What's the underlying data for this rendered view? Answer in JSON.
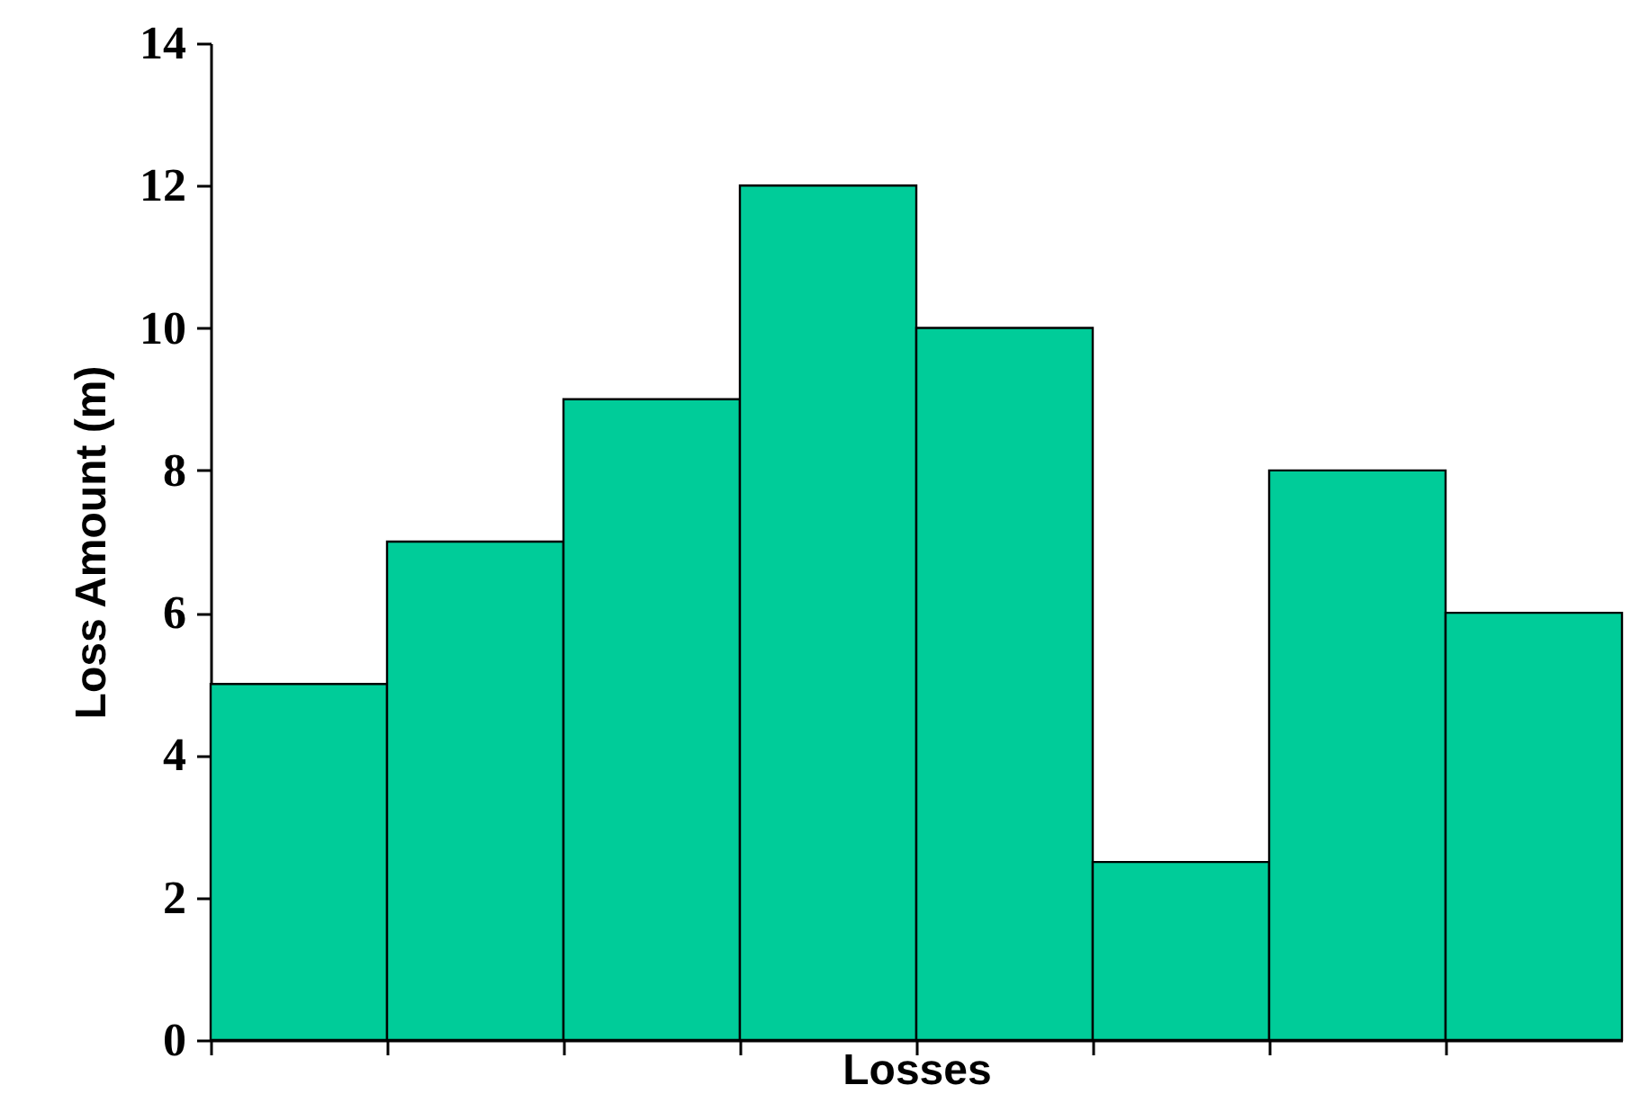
{
  "chart_data": {
    "type": "bar",
    "xlabel": "Losses",
    "ylabel": "Loss Amount (m)",
    "categories": [
      null,
      null,
      null,
      null,
      null,
      null,
      null,
      null
    ],
    "values": [
      5,
      7,
      9,
      12,
      10,
      2.5,
      8,
      6
    ],
    "color": "#00cc99",
    "ylim": [
      0,
      14
    ],
    "yticks": [
      0,
      2,
      4,
      6,
      8,
      10,
      12,
      14
    ],
    "tick_labels": "y"
  }
}
